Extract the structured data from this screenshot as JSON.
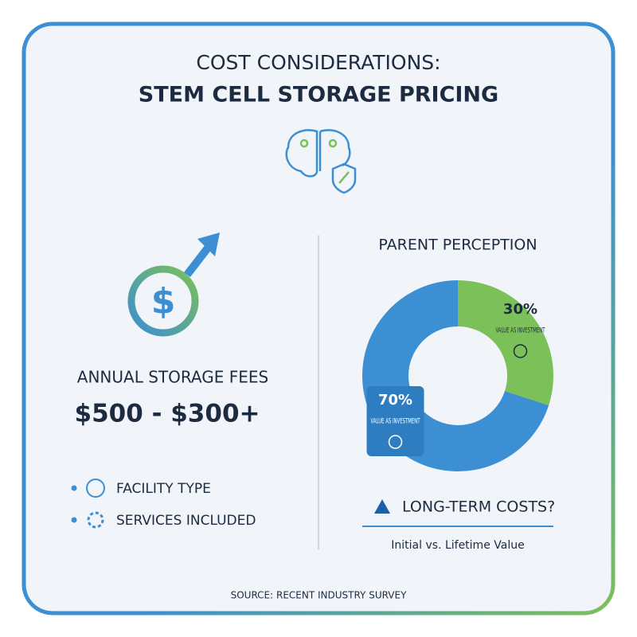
{
  "header": {
    "title": "COST CONSIDERATIONS:",
    "subtitle": "STEM CELL STORAGE PRICING"
  },
  "fees": {
    "label": "ANNUAL STORAGE FEES",
    "range": "$500 - $300+",
    "factors": [
      "FACILITY TYPE",
      "SERVICES INCLUDED"
    ]
  },
  "chart_data": {
    "type": "donut",
    "title": "PARENT PERCEPTION",
    "categories": [
      "VALUE AS INVESTMENT",
      "VALUE AS INVESTMENT"
    ],
    "values": [
      70,
      30
    ],
    "value_labels": [
      "70%",
      "30%"
    ],
    "colors": [
      "#3b8fd2",
      "#7cc05a"
    ]
  },
  "callout": {
    "title": "LONG-TERM COSTS?",
    "subtitle": "Initial vs. Lifetime Value"
  },
  "source": "SOURCE: RECENT INDUSTRY SURVEY"
}
